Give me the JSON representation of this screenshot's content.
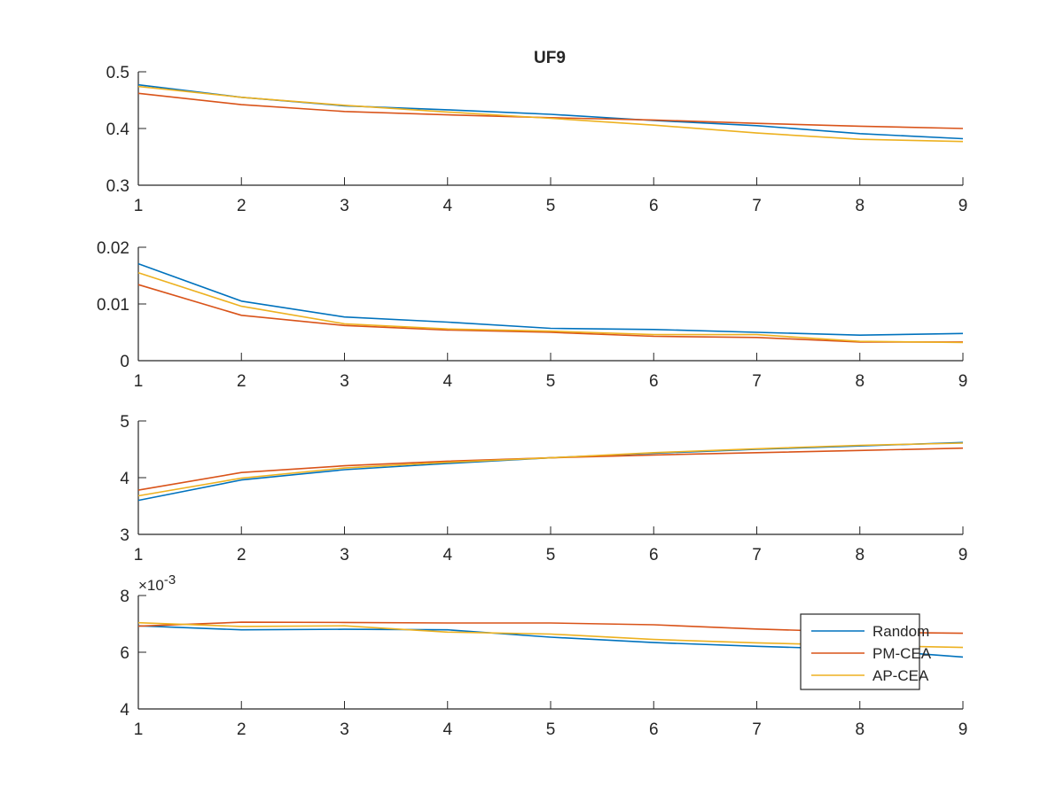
{
  "figure_title": "UF9",
  "chart_data": [
    {
      "type": "line",
      "title": "UF9",
      "xlabel": "",
      "ylabel": "",
      "x": [
        1,
        2,
        3,
        4,
        5,
        6,
        7,
        8,
        9
      ],
      "xlim": [
        1,
        9
      ],
      "ylim": [
        0.3,
        0.5
      ],
      "yticks": [
        0.3,
        0.4,
        0.5
      ],
      "ytick_labels": [
        "0.3",
        "0.4",
        "0.5"
      ],
      "grid": false,
      "series": [
        {
          "name": "Random",
          "color": "#0072bd",
          "values": [
            0.477,
            0.455,
            0.44,
            0.433,
            0.425,
            0.414,
            0.405,
            0.391,
            0.382
          ]
        },
        {
          "name": "PM-CEA",
          "color": "#d95319",
          "values": [
            0.462,
            0.442,
            0.43,
            0.424,
            0.419,
            0.415,
            0.409,
            0.404,
            0.4
          ]
        },
        {
          "name": "AP-CEA",
          "color": "#edb120",
          "values": [
            0.474,
            0.455,
            0.441,
            0.429,
            0.418,
            0.406,
            0.392,
            0.381,
            0.377
          ]
        }
      ]
    },
    {
      "type": "line",
      "title": "",
      "xlabel": "",
      "ylabel": "",
      "x": [
        1,
        2,
        3,
        4,
        5,
        6,
        7,
        8,
        9
      ],
      "xlim": [
        1,
        9
      ],
      "ylim": [
        0,
        0.02
      ],
      "yticks": [
        0,
        0.01,
        0.02
      ],
      "ytick_labels": [
        "0",
        "0.01",
        "0.02"
      ],
      "grid": false,
      "series": [
        {
          "name": "Random",
          "color": "#0072bd",
          "values": [
            0.0171,
            0.0105,
            0.0077,
            0.0068,
            0.0057,
            0.0055,
            0.005,
            0.0045,
            0.0048
          ]
        },
        {
          "name": "PM-CEA",
          "color": "#d95319",
          "values": [
            0.0134,
            0.008,
            0.0062,
            0.0054,
            0.005,
            0.0043,
            0.0041,
            0.0033,
            0.0033
          ]
        },
        {
          "name": "AP-CEA",
          "color": "#edb120",
          "values": [
            0.0155,
            0.0096,
            0.0065,
            0.0056,
            0.0052,
            0.0046,
            0.0046,
            0.0034,
            0.0032
          ]
        }
      ]
    },
    {
      "type": "line",
      "title": "",
      "xlabel": "",
      "ylabel": "",
      "x": [
        1,
        2,
        3,
        4,
        5,
        6,
        7,
        8,
        9
      ],
      "xlim": [
        1,
        9
      ],
      "ylim": [
        3,
        5
      ],
      "yticks": [
        3,
        4,
        5
      ],
      "ytick_labels": [
        "3",
        "4",
        "5"
      ],
      "grid": false,
      "series": [
        {
          "name": "Random",
          "color": "#0072bd",
          "values": [
            3.6,
            3.96,
            4.14,
            4.25,
            4.35,
            4.43,
            4.5,
            4.56,
            4.62
          ]
        },
        {
          "name": "PM-CEA",
          "color": "#d95319",
          "values": [
            3.78,
            4.09,
            4.21,
            4.29,
            4.35,
            4.4,
            4.44,
            4.48,
            4.52
          ]
        },
        {
          "name": "AP-CEA",
          "color": "#edb120",
          "values": [
            3.68,
            3.99,
            4.17,
            4.27,
            4.35,
            4.44,
            4.51,
            4.57,
            4.61
          ]
        }
      ]
    },
    {
      "type": "line",
      "title": "",
      "xlabel": "",
      "ylabel": "",
      "x": [
        1,
        2,
        3,
        4,
        5,
        6,
        7,
        8,
        9
      ],
      "xlim": [
        1,
        9
      ],
      "ylim": [
        0.004,
        0.008
      ],
      "yticks": [
        0.004,
        0.006,
        0.008
      ],
      "ytick_labels": [
        "4",
        "6",
        "8"
      ],
      "y_exponent_label": "×10",
      "y_exponent_power": "-3",
      "grid": false,
      "legend_position": "right",
      "legend": [
        "Random",
        "PM-CEA",
        "AP-CEA"
      ],
      "series": [
        {
          "name": "Random",
          "color": "#0072bd",
          "values": [
            0.00693,
            0.00679,
            0.00681,
            0.00679,
            0.00653,
            0.00634,
            0.00621,
            0.0061,
            0.00583
          ]
        },
        {
          "name": "PM-CEA",
          "color": "#d95319",
          "values": [
            0.00692,
            0.00706,
            0.00705,
            0.00703,
            0.00703,
            0.00697,
            0.00682,
            0.00671,
            0.00667
          ]
        },
        {
          "name": "AP-CEA",
          "color": "#edb120",
          "values": [
            0.00704,
            0.00691,
            0.00693,
            0.00671,
            0.00664,
            0.00645,
            0.00633,
            0.00624,
            0.00617
          ]
        }
      ]
    }
  ],
  "x_tick_labels": [
    "1",
    "2",
    "3",
    "4",
    "5",
    "6",
    "7",
    "8",
    "9"
  ]
}
